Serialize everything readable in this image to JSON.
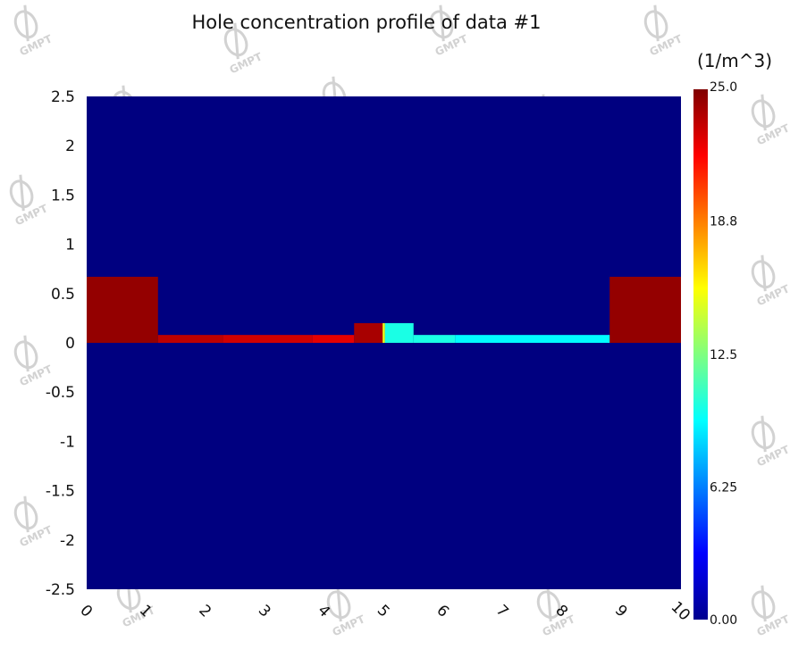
{
  "chart_data": {
    "type": "heatmap",
    "title": "Hole concentration profile of data #1",
    "xlim": [
      0,
      10
    ],
    "ylim": [
      -2.5,
      2.5
    ],
    "x_ticks": [
      "0",
      "1",
      "2",
      "3",
      "4",
      "5",
      "6",
      "7",
      "8",
      "9",
      "10"
    ],
    "y_ticks": [
      "2.5",
      "2",
      "1.5",
      "1",
      "0.5",
      "0",
      "-0.5",
      "-1",
      "-1.5",
      "-2",
      "-2.5"
    ],
    "background_value": 0,
    "regions": [
      {
        "x": [
          0,
          1.2
        ],
        "y": [
          0.0,
          0.67
        ],
        "value": 24.5
      },
      {
        "x": [
          1.2,
          2.3
        ],
        "y": [
          0.0,
          0.08
        ],
        "value": 23.5
      },
      {
        "x": [
          2.3,
          3.8
        ],
        "y": [
          0.0,
          0.08
        ],
        "value": 23.0
      },
      {
        "x": [
          3.8,
          4.5
        ],
        "y": [
          0.0,
          0.08
        ],
        "value": 22.5
      },
      {
        "x": [
          4.5,
          5.0
        ],
        "y": [
          0.0,
          0.2
        ],
        "value": 24.0
      },
      {
        "x": [
          4.98,
          5.02
        ],
        "y": [
          0.0,
          0.2
        ],
        "value": 15.0
      },
      {
        "x": [
          5.02,
          5.5
        ],
        "y": [
          0.0,
          0.2
        ],
        "value": 10.0
      },
      {
        "x": [
          5.5,
          6.2
        ],
        "y": [
          0.0,
          0.08
        ],
        "value": 10.0
      },
      {
        "x": [
          6.2,
          10.0
        ],
        "y": [
          0.0,
          0.08
        ],
        "value": 9.3
      },
      {
        "x": [
          8.8,
          10.0
        ],
        "y": [
          0.0,
          0.67
        ],
        "value": 24.5
      }
    ],
    "colorbar": {
      "title": "(1/m^3)",
      "min": 0,
      "max": 25,
      "ticks": [
        "25.0",
        "18.8",
        "12.5",
        "6.25",
        "0.00"
      ],
      "tick_values": [
        25.0,
        18.8,
        12.5,
        6.25,
        0.0
      ],
      "colormap": "jet"
    },
    "grid": false
  },
  "watermark": {
    "text": "GMPT"
  }
}
